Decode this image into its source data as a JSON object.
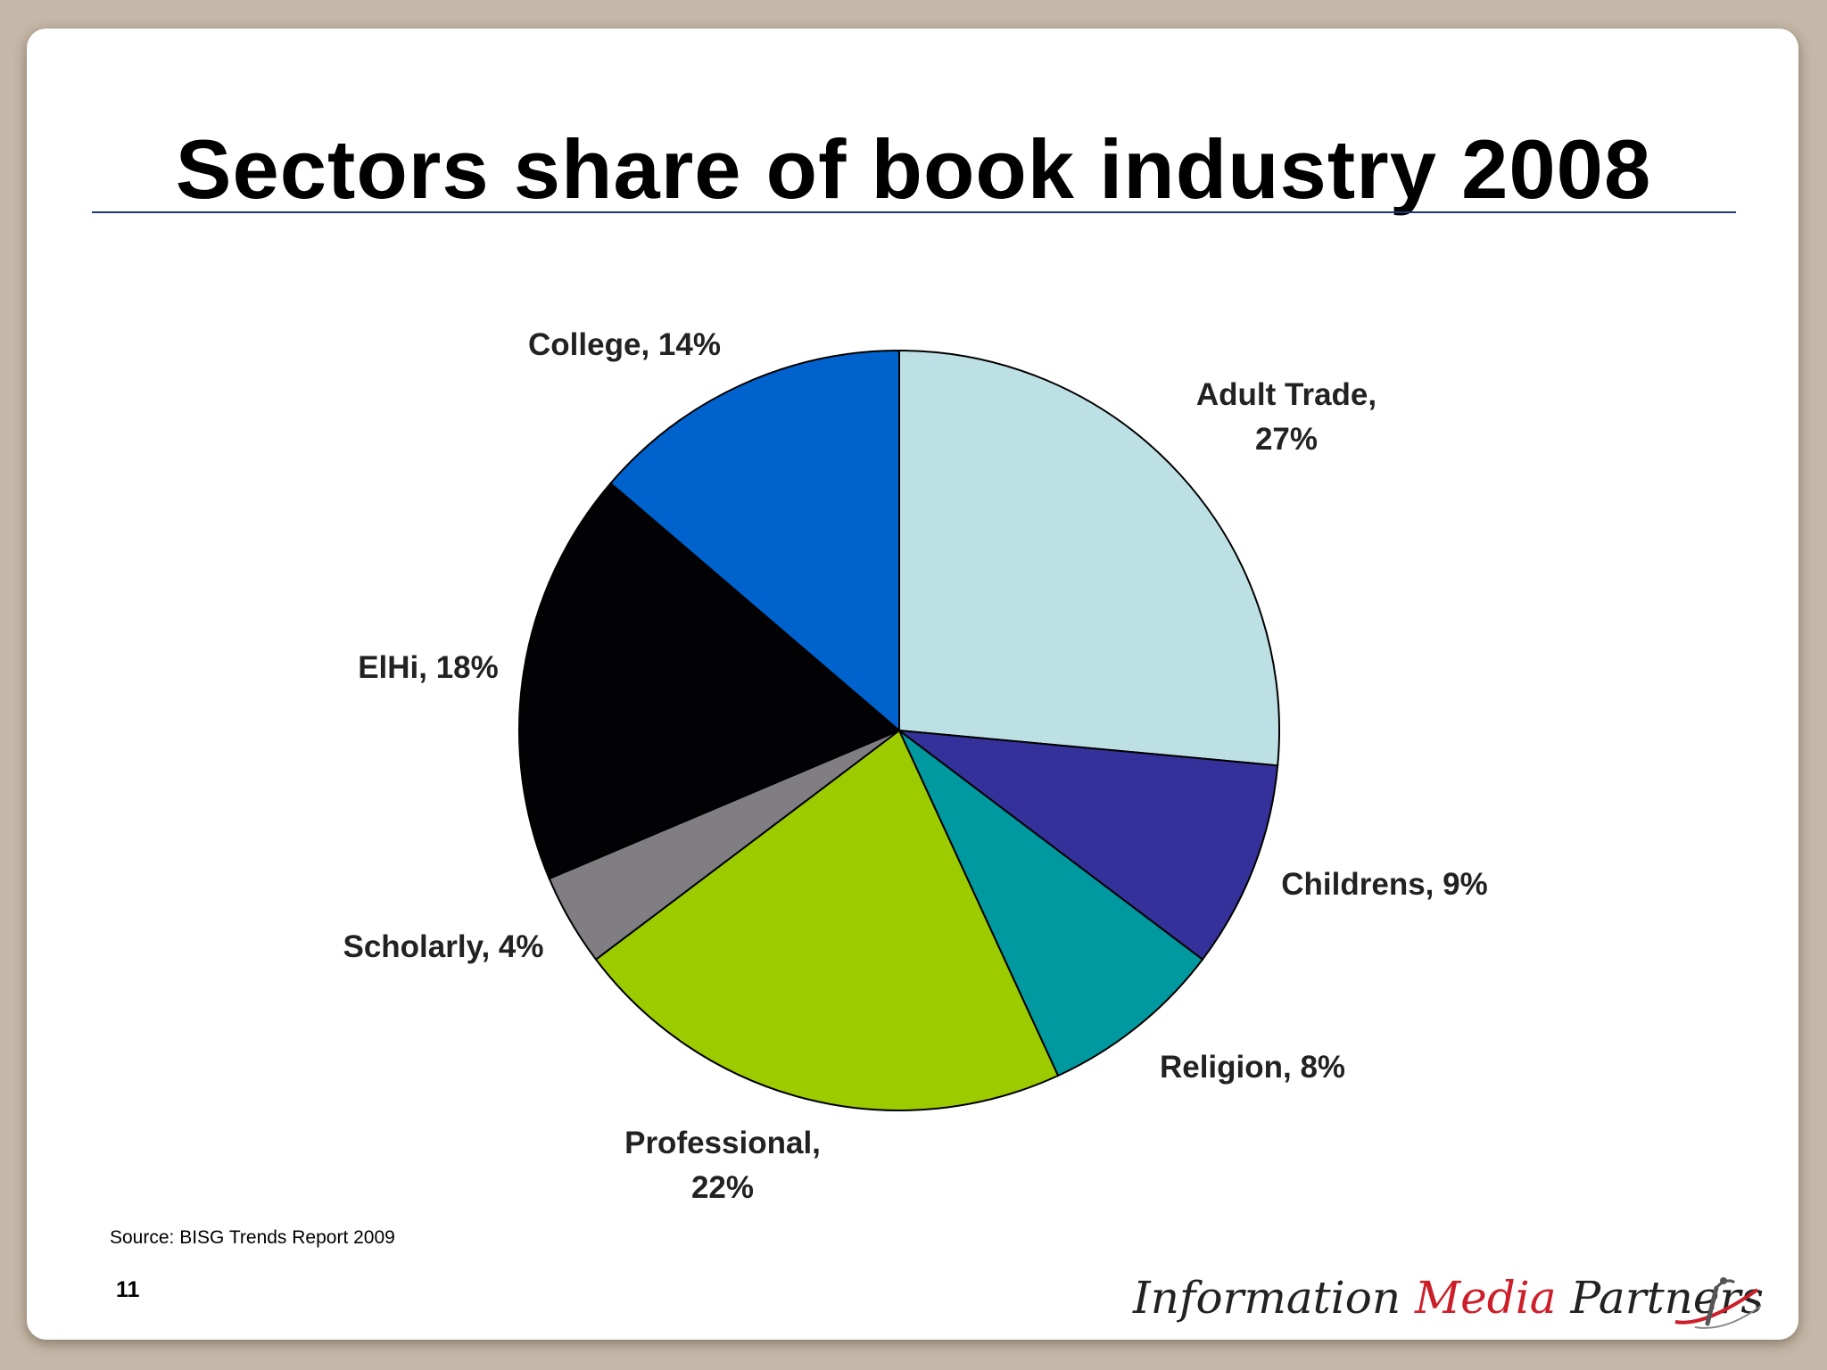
{
  "slide": {
    "title": "Sectors share of book industry 2008",
    "source": "Source: BISG Trends Report 2009",
    "page_number": "11",
    "logo": {
      "part1": "Information",
      "part2": "Media",
      "part3": "Partners"
    }
  },
  "colors": {
    "accent_rule": "#1f3a7a",
    "logo_accent": "#cc1f2a"
  },
  "chart_data": {
    "type": "pie",
    "title": "",
    "start_angle_deg": 0,
    "direction": "clockwise",
    "slices": [
      {
        "name": "Adult Trade",
        "label_lines": [
          "Adult Trade,",
          "27%"
        ],
        "value": 27,
        "color": "#bde0e4"
      },
      {
        "name": "Childrens",
        "label_lines": [
          "Childrens, 9%"
        ],
        "value": 9,
        "color": "#35319a"
      },
      {
        "name": "Religion",
        "label_lines": [
          "Religion, 8%"
        ],
        "value": 8,
        "color": "#00999f"
      },
      {
        "name": "Professional",
        "label_lines": [
          "Professional,",
          "22%"
        ],
        "value": 22,
        "color": "#9ccb00"
      },
      {
        "name": "Scholarly",
        "label_lines": [
          "Scholarly, 4%"
        ],
        "value": 4,
        "color": "#807e82"
      },
      {
        "name": "ElHi",
        "label_lines": [
          "ElHi, 18%"
        ],
        "value": 18,
        "color": "#020103"
      },
      {
        "name": "College",
        "label_lines": [
          "College, 14%"
        ],
        "value": 14,
        "color": "#0062cc"
      }
    ]
  }
}
